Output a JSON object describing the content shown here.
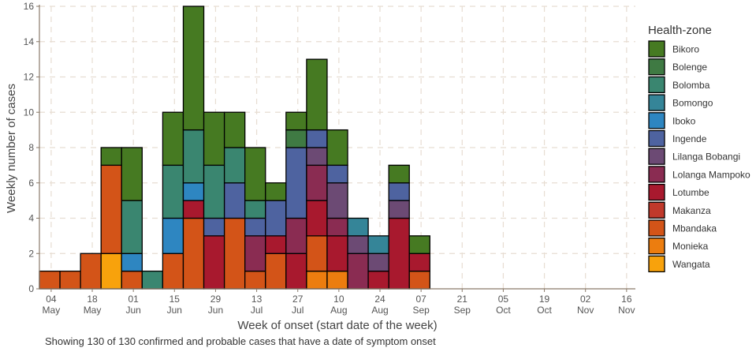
{
  "chart_data": {
    "type": "bar",
    "stacked": true,
    "xlabel": "Week of onset (start date of the week)",
    "ylabel": "Weekly number of cases",
    "ylim": [
      0,
      16
    ],
    "y_ticks": [
      0,
      2,
      4,
      6,
      8,
      10,
      12,
      14,
      16
    ],
    "grid": true,
    "legend_title": "Health-zone",
    "legend_position": "right",
    "x_tick_labels": [
      {
        "day": "04",
        "month": "May"
      },
      {
        "day": "18",
        "month": "May"
      },
      {
        "day": "01",
        "month": "Jun"
      },
      {
        "day": "15",
        "month": "Jun"
      },
      {
        "day": "29",
        "month": "Jun"
      },
      {
        "day": "13",
        "month": "Jul"
      },
      {
        "day": "27",
        "month": "Jul"
      },
      {
        "day": "10",
        "month": "Aug"
      },
      {
        "day": "24",
        "month": "Aug"
      },
      {
        "day": "07",
        "month": "Sep"
      },
      {
        "day": "21",
        "month": "Sep"
      },
      {
        "day": "05",
        "month": "Oct"
      },
      {
        "day": "19",
        "month": "Oct"
      },
      {
        "day": "02",
        "month": "Nov"
      },
      {
        "day": "16",
        "month": "Nov"
      }
    ],
    "x_axis_start": "2018-04-30",
    "x_axis_end": "2018-11-19",
    "series": [
      {
        "name": "Bikoro",
        "color": "#467a22"
      },
      {
        "name": "Bolenge",
        "color": "#3f7a43"
      },
      {
        "name": "Bolomba",
        "color": "#3a8670"
      },
      {
        "name": "Bomongo",
        "color": "#358598"
      },
      {
        "name": "Iboko",
        "color": "#2e86c1"
      },
      {
        "name": "Ingende",
        "color": "#4e63a0"
      },
      {
        "name": "Lilanga Bobangi",
        "color": "#6c4a74"
      },
      {
        "name": "Lolanga Mampoko",
        "color": "#8a2c52"
      },
      {
        "name": "Lotumbe",
        "color": "#a8192e"
      },
      {
        "name": "Makanza",
        "color": "#c0392b"
      },
      {
        "name": "Mbandaka",
        "color": "#d35418"
      },
      {
        "name": "Monieka",
        "color": "#ec7d0f"
      },
      {
        "name": "Wangata",
        "color": "#f8a20c"
      }
    ],
    "weeks": [
      {
        "start": "2018-04-30",
        "segments": [
          [
            "Mbandaka",
            1
          ]
        ]
      },
      {
        "start": "2018-05-07",
        "segments": [
          [
            "Mbandaka",
            1
          ]
        ]
      },
      {
        "start": "2018-05-14",
        "segments": [
          [
            "Mbandaka",
            2
          ]
        ]
      },
      {
        "start": "2018-05-21",
        "segments": [
          [
            "Wangata",
            2
          ],
          [
            "Mbandaka",
            5
          ],
          [
            "Bikoro",
            1
          ]
        ]
      },
      {
        "start": "2018-05-28",
        "segments": [
          [
            "Mbandaka",
            1
          ],
          [
            "Iboko",
            1
          ],
          [
            "Bolomba",
            3
          ],
          [
            "Bikoro",
            3
          ]
        ]
      },
      {
        "start": "2018-06-04",
        "segments": [
          [
            "Bolomba",
            1
          ]
        ]
      },
      {
        "start": "2018-06-11",
        "segments": [
          [
            "Mbandaka",
            2
          ],
          [
            "Iboko",
            2
          ],
          [
            "Bolomba",
            3
          ],
          [
            "Bikoro",
            3
          ]
        ]
      },
      {
        "start": "2018-06-18",
        "segments": [
          [
            "Mbandaka",
            4
          ],
          [
            "Lotumbe",
            1
          ],
          [
            "Iboko",
            1
          ],
          [
            "Bolomba",
            3
          ],
          [
            "Bikoro",
            7
          ]
        ]
      },
      {
        "start": "2018-06-25",
        "segments": [
          [
            "Lotumbe",
            3
          ],
          [
            "Ingende",
            1
          ],
          [
            "Bolomba",
            3
          ],
          [
            "Bikoro",
            3
          ]
        ]
      },
      {
        "start": "2018-07-02",
        "segments": [
          [
            "Mbandaka",
            4
          ],
          [
            "Ingende",
            2
          ],
          [
            "Bolomba",
            2
          ],
          [
            "Bikoro",
            2
          ]
        ]
      },
      {
        "start": "2018-07-09",
        "segments": [
          [
            "Mbandaka",
            1
          ],
          [
            "Lolanga Mampoko",
            2
          ],
          [
            "Ingende",
            1
          ],
          [
            "Bolomba",
            1
          ],
          [
            "Bikoro",
            3
          ]
        ]
      },
      {
        "start": "2018-07-16",
        "segments": [
          [
            "Mbandaka",
            2
          ],
          [
            "Lotumbe",
            1
          ],
          [
            "Ingende",
            2
          ],
          [
            "Bikoro",
            1
          ]
        ]
      },
      {
        "start": "2018-07-23",
        "segments": [
          [
            "Lotumbe",
            2
          ],
          [
            "Lolanga Mampoko",
            2
          ],
          [
            "Ingende",
            4
          ],
          [
            "Bolenge",
            1
          ],
          [
            "Bikoro",
            1
          ]
        ]
      },
      {
        "start": "2018-07-30",
        "segments": [
          [
            "Monieka",
            1
          ],
          [
            "Mbandaka",
            2
          ],
          [
            "Lotumbe",
            2
          ],
          [
            "Lolanga Mampoko",
            2
          ],
          [
            "Lilanga Bobangi",
            1
          ],
          [
            "Ingende",
            1
          ],
          [
            "Bikoro",
            4
          ]
        ]
      },
      {
        "start": "2018-08-06",
        "segments": [
          [
            "Monieka",
            1
          ],
          [
            "Lotumbe",
            2
          ],
          [
            "Lolanga Mampoko",
            1
          ],
          [
            "Lilanga Bobangi",
            2
          ],
          [
            "Ingende",
            1
          ],
          [
            "Bikoro",
            2
          ]
        ]
      },
      {
        "start": "2018-08-13",
        "segments": [
          [
            "Lolanga Mampoko",
            2
          ],
          [
            "Lilanga Bobangi",
            1
          ],
          [
            "Bomongo",
            1
          ]
        ]
      },
      {
        "start": "2018-08-20",
        "segments": [
          [
            "Lotumbe",
            1
          ],
          [
            "Lilanga Bobangi",
            1
          ],
          [
            "Bomongo",
            1
          ]
        ]
      },
      {
        "start": "2018-08-27",
        "segments": [
          [
            "Lotumbe",
            4
          ],
          [
            "Lilanga Bobangi",
            1
          ],
          [
            "Ingende",
            1
          ],
          [
            "Bikoro",
            1
          ]
        ]
      },
      {
        "start": "2018-09-03",
        "segments": [
          [
            "Mbandaka",
            1
          ],
          [
            "Lotumbe",
            1
          ],
          [
            "Bikoro",
            1
          ]
        ]
      }
    ]
  },
  "caption": "Showing 130 of 130 confirmed and probable cases that have a date of symptom onset"
}
